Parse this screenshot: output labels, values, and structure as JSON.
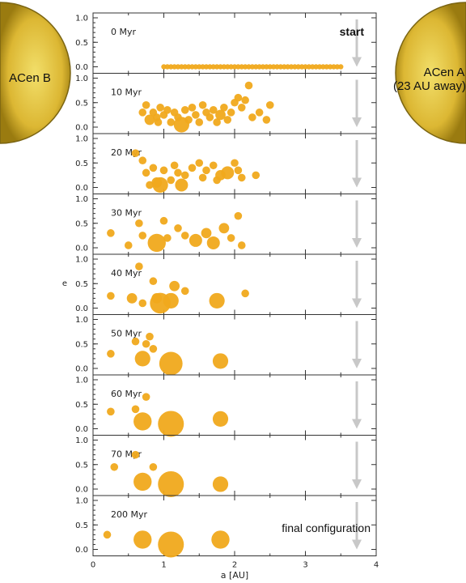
{
  "stars": {
    "left": {
      "label": "ACen B",
      "color": "#d9b22a"
    },
    "right": {
      "label_line1": "ACen A",
      "label_line2": "(23 AU away)",
      "color": "#d9b22a"
    }
  },
  "annotations": {
    "start": "start",
    "final": "final configuration"
  },
  "arrow_color": "#c8c8c8",
  "marker_color": "#f0a91c",
  "chart_data": {
    "type": "scatter",
    "xlabel": "a [AU]",
    "ylabel": "e",
    "xlim": [
      0,
      4
    ],
    "ylim": [
      0,
      1
    ],
    "xticks": [
      "0",
      "1",
      "2",
      "3",
      "4"
    ],
    "yticks": [
      "0.0",
      "0.5",
      "1.0"
    ],
    "grid": false,
    "panels": [
      {
        "time": "0 Myr",
        "points": [
          [
            1.0,
            0,
            1
          ],
          [
            1.05,
            0,
            1
          ],
          [
            1.1,
            0,
            1
          ],
          [
            1.15,
            0,
            1
          ],
          [
            1.2,
            0,
            1
          ],
          [
            1.25,
            0,
            1
          ],
          [
            1.3,
            0,
            1
          ],
          [
            1.35,
            0,
            1
          ],
          [
            1.4,
            0,
            1
          ],
          [
            1.45,
            0,
            1
          ],
          [
            1.5,
            0,
            1
          ],
          [
            1.55,
            0,
            1
          ],
          [
            1.6,
            0,
            1
          ],
          [
            1.65,
            0,
            1
          ],
          [
            1.7,
            0,
            1
          ],
          [
            1.75,
            0,
            1
          ],
          [
            1.8,
            0,
            1
          ],
          [
            1.85,
            0,
            1
          ],
          [
            1.9,
            0,
            1
          ],
          [
            1.95,
            0,
            1
          ],
          [
            2.0,
            0,
            1
          ],
          [
            2.05,
            0,
            1
          ],
          [
            2.1,
            0,
            1
          ],
          [
            2.15,
            0,
            1
          ],
          [
            2.2,
            0,
            1
          ],
          [
            2.25,
            0,
            1
          ],
          [
            2.3,
            0,
            1
          ],
          [
            2.35,
            0,
            1
          ],
          [
            2.4,
            0,
            1
          ],
          [
            2.45,
            0,
            1
          ],
          [
            2.5,
            0,
            1
          ],
          [
            2.55,
            0,
            1
          ],
          [
            2.6,
            0,
            1
          ],
          [
            2.65,
            0,
            1
          ],
          [
            2.7,
            0,
            1
          ],
          [
            2.75,
            0,
            1
          ],
          [
            2.8,
            0,
            1
          ],
          [
            2.85,
            0,
            1
          ],
          [
            2.9,
            0,
            1
          ],
          [
            2.95,
            0,
            1
          ],
          [
            3.0,
            0,
            1
          ],
          [
            3.05,
            0,
            1
          ],
          [
            3.1,
            0,
            1
          ],
          [
            3.15,
            0,
            1
          ],
          [
            3.2,
            0,
            1
          ],
          [
            3.25,
            0,
            1
          ],
          [
            3.3,
            0,
            1
          ],
          [
            3.35,
            0,
            1
          ],
          [
            3.4,
            0,
            1
          ],
          [
            3.45,
            0,
            1
          ],
          [
            3.5,
            0,
            1
          ]
        ]
      },
      {
        "time": "10 Myr",
        "points": [
          [
            0.7,
            0.3,
            1.5
          ],
          [
            0.75,
            0.45,
            1.5
          ],
          [
            0.8,
            0.15,
            2
          ],
          [
            0.85,
            0.3,
            1.5
          ],
          [
            0.9,
            0.2,
            1.5
          ],
          [
            0.92,
            0.1,
            1.5
          ],
          [
            0.95,
            0.4,
            1.5
          ],
          [
            1.0,
            0.25,
            1.5
          ],
          [
            1.05,
            0.35,
            1.5
          ],
          [
            1.1,
            0.1,
            1.5
          ],
          [
            1.15,
            0.3,
            1.5
          ],
          [
            1.2,
            0.2,
            1.5
          ],
          [
            1.25,
            0.05,
            3
          ],
          [
            1.3,
            0.35,
            1.5
          ],
          [
            1.35,
            0.15,
            1.5
          ],
          [
            1.4,
            0.4,
            1.5
          ],
          [
            1.45,
            0.25,
            1.5
          ],
          [
            1.5,
            0.1,
            1.5
          ],
          [
            1.55,
            0.45,
            1.5
          ],
          [
            1.6,
            0.3,
            1.5
          ],
          [
            1.65,
            0.2,
            1.5
          ],
          [
            1.7,
            0.35,
            1.5
          ],
          [
            1.75,
            0.1,
            1.5
          ],
          [
            1.8,
            0.25,
            2
          ],
          [
            1.85,
            0.4,
            1.5
          ],
          [
            1.9,
            0.15,
            1.5
          ],
          [
            1.95,
            0.3,
            1.5
          ],
          [
            2.0,
            0.5,
            1.5
          ],
          [
            2.05,
            0.6,
            1.5
          ],
          [
            2.1,
            0.4,
            1.5
          ],
          [
            2.15,
            0.55,
            1.5
          ],
          [
            2.2,
            0.85,
            1.5
          ],
          [
            2.25,
            0.2,
            1.5
          ],
          [
            2.35,
            0.3,
            1.5
          ],
          [
            2.45,
            0.15,
            1.5
          ],
          [
            2.5,
            0.45,
            1.5
          ]
        ]
      },
      {
        "time": "20 Myr",
        "points": [
          [
            0.6,
            0.7,
            1.5
          ],
          [
            0.7,
            0.55,
            1.5
          ],
          [
            0.75,
            0.3,
            1.5
          ],
          [
            0.8,
            0.05,
            1.5
          ],
          [
            0.85,
            0.4,
            1.5
          ],
          [
            0.9,
            0.1,
            2
          ],
          [
            0.95,
            0.05,
            3
          ],
          [
            1.0,
            0.35,
            1.5
          ],
          [
            1.1,
            0.15,
            1.5
          ],
          [
            1.15,
            0.45,
            1.5
          ],
          [
            1.2,
            0.3,
            1.5
          ],
          [
            1.25,
            0.05,
            2.5
          ],
          [
            1.3,
            0.25,
            1.5
          ],
          [
            1.4,
            0.4,
            1.5
          ],
          [
            1.5,
            0.5,
            1.5
          ],
          [
            1.55,
            0.2,
            1.5
          ],
          [
            1.6,
            0.35,
            1.5
          ],
          [
            1.7,
            0.45,
            1.5
          ],
          [
            1.75,
            0.15,
            1.5
          ],
          [
            1.8,
            0.25,
            2
          ],
          [
            1.9,
            0.3,
            2.5
          ],
          [
            2.0,
            0.5,
            1.5
          ],
          [
            2.05,
            0.35,
            1.5
          ],
          [
            2.1,
            0.2,
            1.5
          ],
          [
            2.3,
            0.25,
            1.5
          ]
        ]
      },
      {
        "time": "30 Myr",
        "points": [
          [
            0.25,
            0.3,
            1.5
          ],
          [
            0.5,
            0.05,
            1.5
          ],
          [
            0.65,
            0.5,
            1.5
          ],
          [
            0.7,
            0.25,
            1.5
          ],
          [
            0.9,
            0.1,
            3.5
          ],
          [
            1.0,
            0.55,
            1.5
          ],
          [
            1.05,
            0.2,
            1.5
          ],
          [
            1.2,
            0.4,
            1.5
          ],
          [
            1.3,
            0.25,
            1.5
          ],
          [
            1.45,
            0.15,
            2.5
          ],
          [
            1.6,
            0.3,
            2
          ],
          [
            1.7,
            0.1,
            2.5
          ],
          [
            1.85,
            0.4,
            2
          ],
          [
            1.95,
            0.2,
            1.5
          ],
          [
            2.05,
            0.65,
            1.5
          ],
          [
            2.1,
            0.05,
            1.5
          ]
        ]
      },
      {
        "time": "40 Myr",
        "points": [
          [
            0.25,
            0.25,
            1.5
          ],
          [
            0.55,
            0.2,
            2
          ],
          [
            0.65,
            0.85,
            1.5
          ],
          [
            0.7,
            0.1,
            1.5
          ],
          [
            0.85,
            0.55,
            1.5
          ],
          [
            0.9,
            0.2,
            2
          ],
          [
            0.95,
            0.1,
            4
          ],
          [
            1.1,
            0.15,
            3
          ],
          [
            1.15,
            0.45,
            2
          ],
          [
            1.3,
            0.35,
            1.5
          ],
          [
            1.75,
            0.15,
            3
          ],
          [
            2.15,
            0.3,
            1.5
          ]
        ]
      },
      {
        "time": "50 Myr",
        "points": [
          [
            0.25,
            0.3,
            1.5
          ],
          [
            0.6,
            0.55,
            1.5
          ],
          [
            0.7,
            0.2,
            3
          ],
          [
            0.75,
            0.5,
            1.5
          ],
          [
            0.8,
            0.65,
            1.5
          ],
          [
            0.85,
            0.4,
            1.5
          ],
          [
            1.1,
            0.1,
            4.5
          ],
          [
            1.8,
            0.15,
            3
          ]
        ]
      },
      {
        "time": "60 Myr",
        "points": [
          [
            0.25,
            0.35,
            1.5
          ],
          [
            0.6,
            0.4,
            1.5
          ],
          [
            0.7,
            0.15,
            3.5
          ],
          [
            0.75,
            0.65,
            1.5
          ],
          [
            1.1,
            0.1,
            5
          ],
          [
            1.8,
            0.2,
            3
          ]
        ]
      },
      {
        "time": "70 Myr",
        "points": [
          [
            0.3,
            0.45,
            1.5
          ],
          [
            0.6,
            0.7,
            1.5
          ],
          [
            0.7,
            0.15,
            3.5
          ],
          [
            0.85,
            0.45,
            1.5
          ],
          [
            1.1,
            0.1,
            5
          ],
          [
            1.8,
            0.1,
            3
          ]
        ]
      },
      {
        "time": "200 Myr",
        "points": [
          [
            0.2,
            0.3,
            1.5
          ],
          [
            0.7,
            0.2,
            3.5
          ],
          [
            1.1,
            0.1,
            5
          ],
          [
            1.8,
            0.2,
            3.5
          ]
        ]
      }
    ]
  }
}
